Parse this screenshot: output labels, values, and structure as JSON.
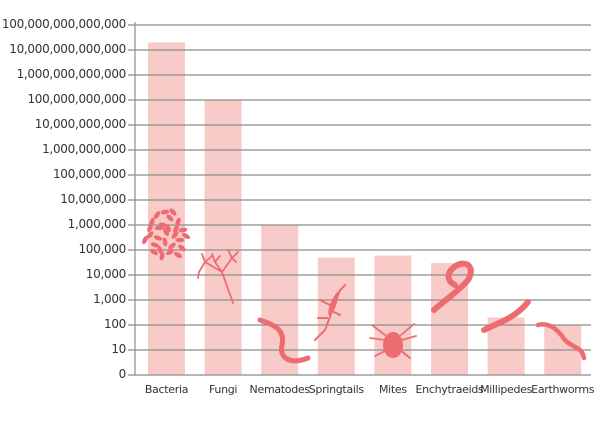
{
  "chart_data": {
    "type": "bar",
    "title": "",
    "xlabel": "",
    "ylabel": "",
    "yscale": "log",
    "grid": true,
    "legend": "none",
    "categories": [
      "Bacteria",
      "Fungi",
      "Nematodes",
      "Springtails",
      "Mites",
      "Enchytraeids",
      "Millipedes",
      "Earthworms"
    ],
    "values": [
      20000000000000,
      100000000000,
      1000000,
      50000,
      60000,
      30000,
      200,
      100
    ],
    "ylim": [
      0,
      100000000000000
    ],
    "y_tick_labels": [
      "0",
      "10",
      "100",
      "1,000",
      "10,000",
      "100,000",
      "1,000,000",
      "10,000,000",
      "100,000,000",
      "1,000,000,000",
      "10,000,000,000",
      "100,000,000,000",
      "1,000,000,000,000",
      "10,000,000,000,000",
      "100,000,000,000,000"
    ],
    "annotations": [
      "bacteria-illustration",
      "fungi-illustration",
      "nematode-illustration",
      "springtail-illustration",
      "mite-illustration",
      "enchytraeid-illustration",
      "millipede-illustration",
      "earthworm-illustration"
    ]
  },
  "colors": {
    "bar": "#f9cbc8",
    "illustration": "#ec6c72",
    "grid": "#8c8c8c",
    "text": "#333333"
  }
}
